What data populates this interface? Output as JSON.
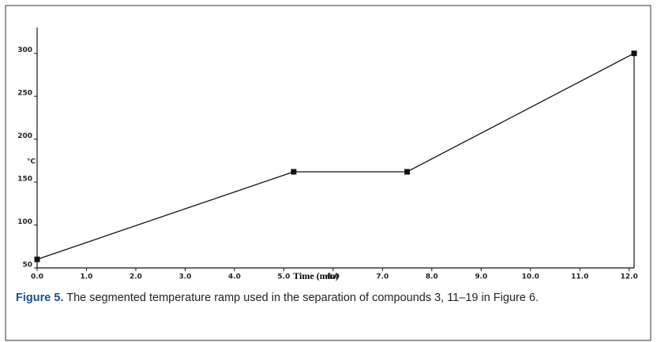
{
  "chart_data": {
    "type": "line",
    "x_label": "Time (min)",
    "y_label": "°C",
    "x": [
      0,
      5.2,
      7.5,
      12.1
    ],
    "series": [
      {
        "color": "#111111",
        "values": [
          60,
          162,
          162,
          300
        ]
      }
    ],
    "xlim": [
      0,
      12.1
    ],
    "ylim": [
      50,
      330
    ],
    "xticks": [
      {
        "value": 0,
        "label": "0.0"
      },
      {
        "value": 1,
        "label": "1.0"
      },
      {
        "value": 2,
        "label": "2.0"
      },
      {
        "value": 3,
        "label": "3.0"
      },
      {
        "value": 4,
        "label": "4.0"
      },
      {
        "value": 5,
        "label": "5.0"
      },
      {
        "value": 6,
        "label": "6.0"
      },
      {
        "value": 7,
        "label": "7.0"
      },
      {
        "value": 8,
        "label": "8.0"
      },
      {
        "value": 9,
        "label": "9.0"
      },
      {
        "value": 10,
        "label": "10.0"
      },
      {
        "value": 11,
        "label": "11.0"
      },
      {
        "value": 12,
        "label": "12.0"
      }
    ],
    "yticks": [
      50,
      100,
      150,
      200,
      250,
      300
    ],
    "grid": false
  },
  "caption": {
    "label": "Figure 5.",
    "text": "The segmented temperature ramp used in the separation of compounds 3, 11–19 in Figure 6."
  }
}
